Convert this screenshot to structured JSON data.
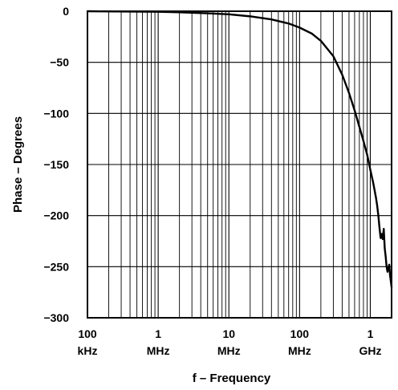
{
  "chart_data": {
    "type": "line",
    "xscale": "log",
    "xlim": [
      100000,
      2000000000
    ],
    "ylim": [
      -300,
      0
    ],
    "grid": true,
    "title": "",
    "xlabel": "f – Frequency",
    "ylabel": "Phase – Degrees",
    "xticks": [
      {
        "value": 100000,
        "line1": "100",
        "line2": "kHz"
      },
      {
        "value": 1000000,
        "line1": "1",
        "line2": "MHz"
      },
      {
        "value": 10000000,
        "line1": "10",
        "line2": "MHz"
      },
      {
        "value": 100000000,
        "line1": "100",
        "line2": "MHz"
      },
      {
        "value": 1000000000,
        "line1": "1",
        "line2": "GHz"
      }
    ],
    "yticks": [
      {
        "value": 0,
        "label": "0"
      },
      {
        "value": -50,
        "label": "−50"
      },
      {
        "value": -100,
        "label": "−100"
      },
      {
        "value": -150,
        "label": "−150"
      },
      {
        "value": -200,
        "label": "−200"
      },
      {
        "value": -250,
        "label": "−250"
      },
      {
        "value": -300,
        "label": "−300"
      }
    ],
    "series": [
      {
        "color": "#000000",
        "x": [
          100000,
          1000000,
          2000000,
          5000000,
          10000000,
          20000000,
          40000000,
          70000000,
          100000000,
          150000000,
          200000000,
          300000000,
          400000000,
          500000000,
          600000000,
          700000000,
          800000000,
          900000000,
          1000000000,
          1100000000,
          1200000000,
          1250000000,
          1300000000,
          1350000000,
          1400000000,
          1450000000,
          1500000000,
          1550000000,
          1600000000,
          1650000000,
          1700000000,
          1750000000,
          1800000000,
          1850000000,
          1900000000,
          2000000000
        ],
        "y": [
          0,
          -0.5,
          -1,
          -2,
          -3,
          -5,
          -8,
          -12,
          -16,
          -22,
          -29,
          -44,
          -62,
          -80,
          -97,
          -113,
          -127,
          -140,
          -155,
          -168,
          -182,
          -190,
          -200,
          -212,
          -222,
          -218,
          -223,
          -213,
          -232,
          -240,
          -250,
          -255,
          -252,
          -248,
          -258,
          -270
        ]
      }
    ]
  }
}
